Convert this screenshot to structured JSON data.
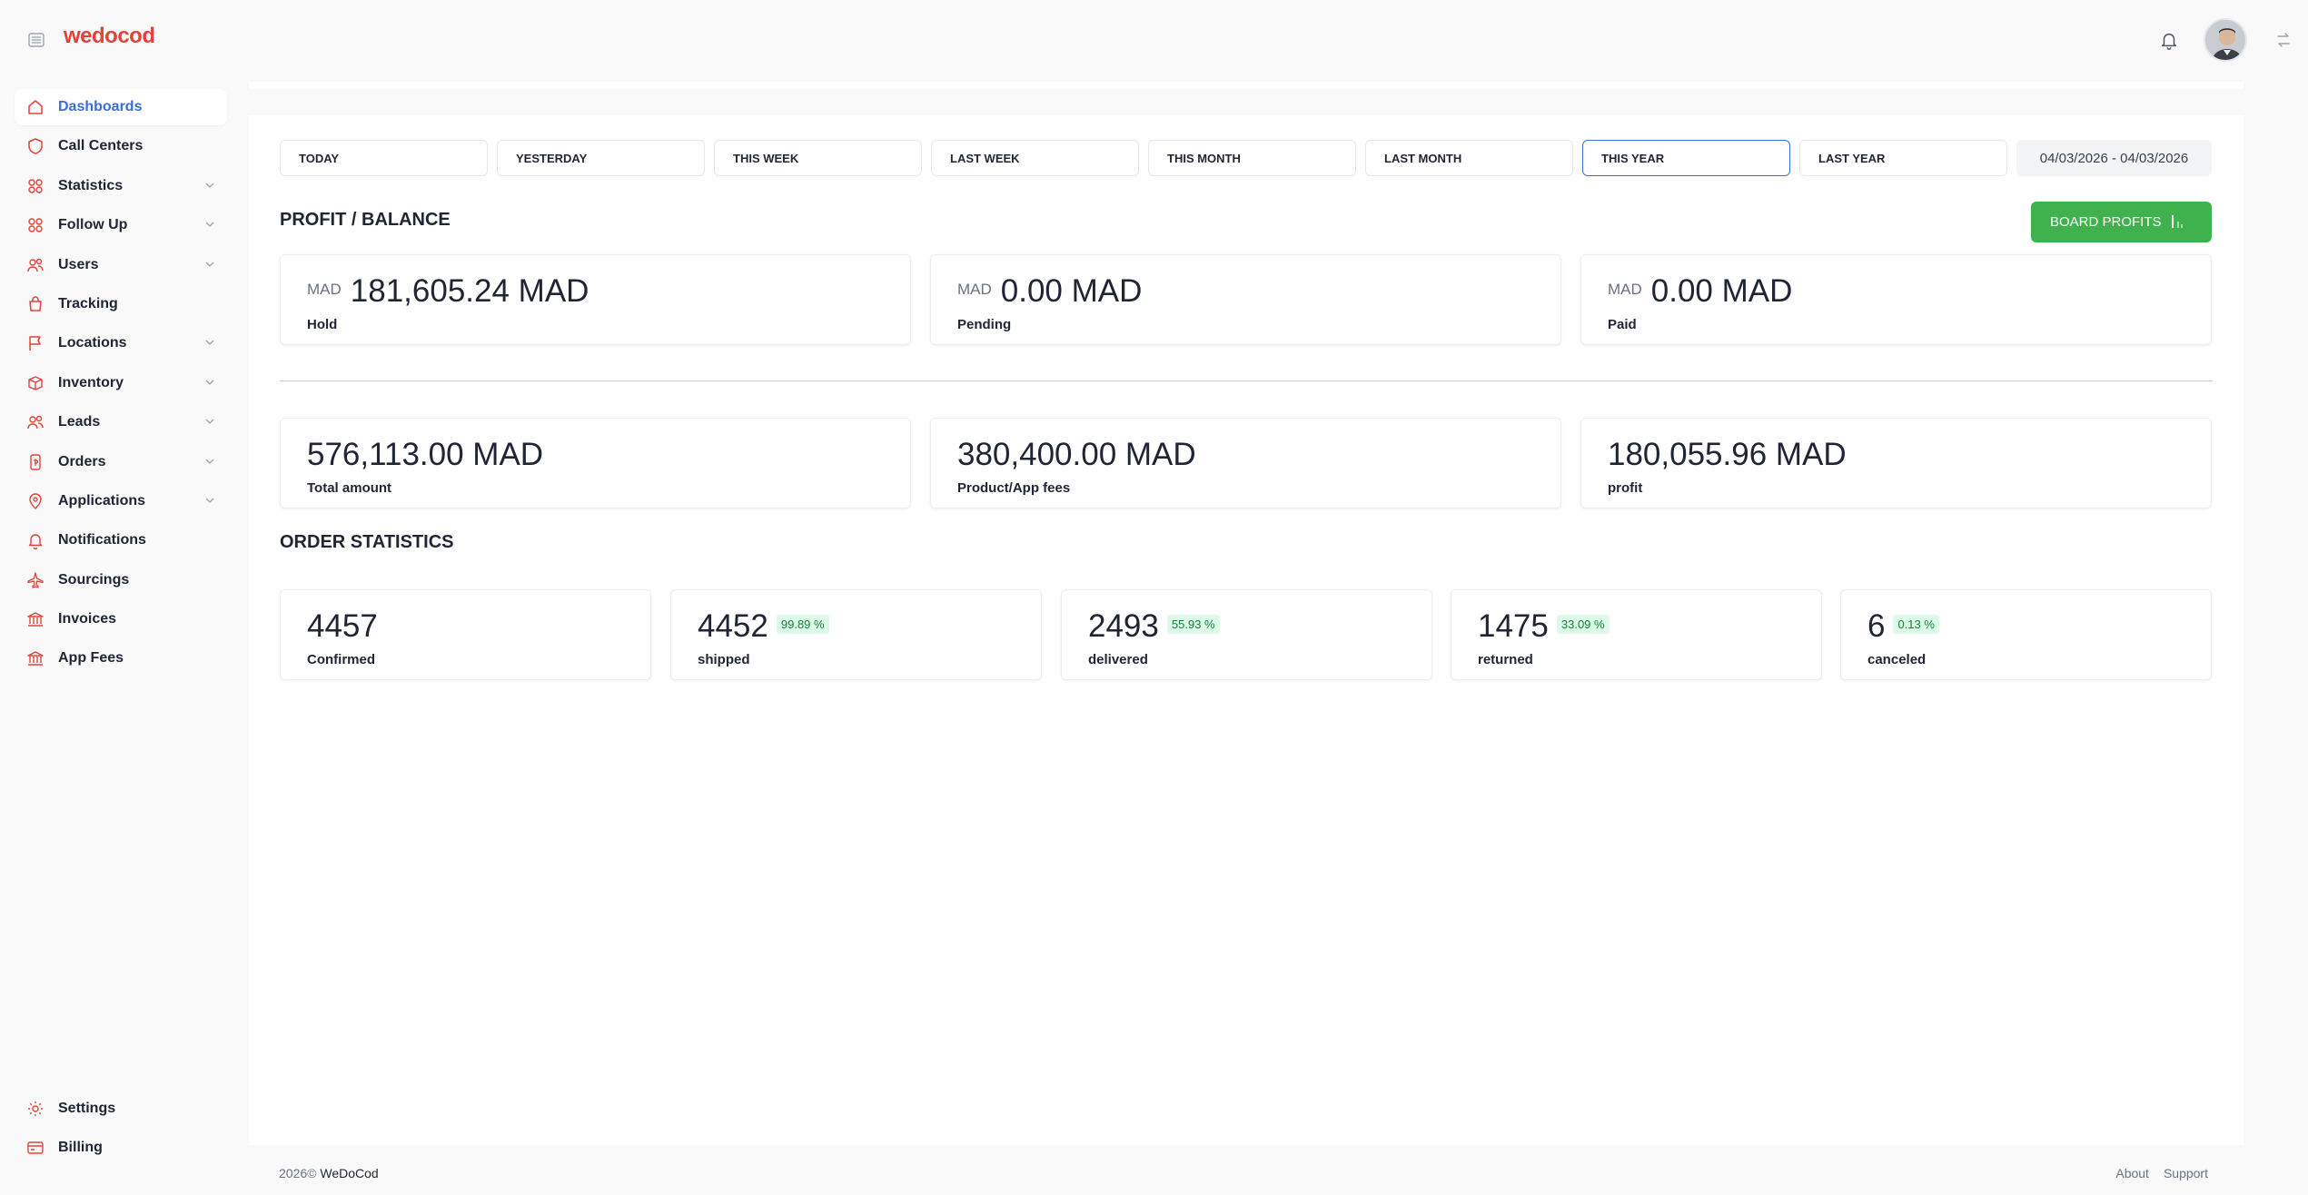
{
  "app": {
    "logo": "wedocod"
  },
  "sidebar": {
    "items": [
      {
        "label": "Dashboards",
        "icon": "home-icon",
        "active": true,
        "expandable": false
      },
      {
        "label": "Call Centers",
        "icon": "shield-icon",
        "expandable": false
      },
      {
        "label": "Statistics",
        "icon": "users-icon",
        "expandable": true
      },
      {
        "label": "Follow Up",
        "icon": "users-icon",
        "expandable": true
      },
      {
        "label": "Users",
        "icon": "users-icon",
        "expandable": true
      },
      {
        "label": "Tracking",
        "icon": "bag-icon",
        "expandable": false
      },
      {
        "label": "Locations",
        "icon": "flag-icon",
        "expandable": true
      },
      {
        "label": "Inventory",
        "icon": "package-icon",
        "expandable": true
      },
      {
        "label": "Leads",
        "icon": "users-icon",
        "expandable": true
      },
      {
        "label": "Orders",
        "icon": "receipt-icon",
        "expandable": true
      },
      {
        "label": "Applications",
        "icon": "location-pin-icon",
        "expandable": true
      },
      {
        "label": "Notifications",
        "icon": "bell-icon",
        "expandable": false
      },
      {
        "label": "Sourcings",
        "icon": "plane-icon",
        "expandable": false
      },
      {
        "label": "Invoices",
        "icon": "bank-icon",
        "expandable": false
      },
      {
        "label": "App Fees",
        "icon": "bank-icon",
        "expandable": false
      }
    ],
    "bottom": [
      {
        "label": "Settings",
        "icon": "gear-icon"
      },
      {
        "label": "Billing",
        "icon": "card-icon"
      }
    ]
  },
  "filters": {
    "periods": [
      "TODAY",
      "YESTERDAY",
      "THIS WEEK",
      "LAST WEEK",
      "THIS MONTH",
      "LAST MONTH",
      "THIS YEAR",
      "LAST YEAR"
    ],
    "selected": "THIS YEAR",
    "date_range": "04/03/2026 - 04/03/2026"
  },
  "profit": {
    "title": "PROFIT / BALANCE",
    "board_button": "BOARD PROFITS",
    "balance_cards": [
      {
        "currency": "MAD",
        "value": "181,605.24 MAD",
        "label": "Hold"
      },
      {
        "currency": "MAD",
        "value": "0.00 MAD",
        "label": "Pending"
      },
      {
        "currency": "MAD",
        "value": "0.00 MAD",
        "label": "Paid"
      }
    ],
    "totals_cards": [
      {
        "value": "576,113.00 MAD",
        "label": "Total amount"
      },
      {
        "value": "380,400.00 MAD",
        "label": "Product/App fees"
      },
      {
        "value": "180,055.96 MAD",
        "label": "profit"
      }
    ]
  },
  "orders": {
    "title": "ORDER STATISTICS",
    "cards": [
      {
        "value": "4457",
        "label": "Confirmed",
        "percent": ""
      },
      {
        "value": "4452",
        "label": "shipped",
        "percent": "99.89 %"
      },
      {
        "value": "2493",
        "label": "delivered",
        "percent": "55.93 %"
      },
      {
        "value": "1475",
        "label": "returned",
        "percent": "33.09 %"
      },
      {
        "value": "6",
        "label": "canceled",
        "percent": "0.13 %"
      }
    ]
  },
  "footer": {
    "copyright": "2026©",
    "brand": "WeDoCod",
    "links": [
      "About",
      "Support"
    ]
  },
  "colors": {
    "brand": "#e0433a",
    "accent": "#3b6fd4",
    "success": "#3fb24e"
  }
}
